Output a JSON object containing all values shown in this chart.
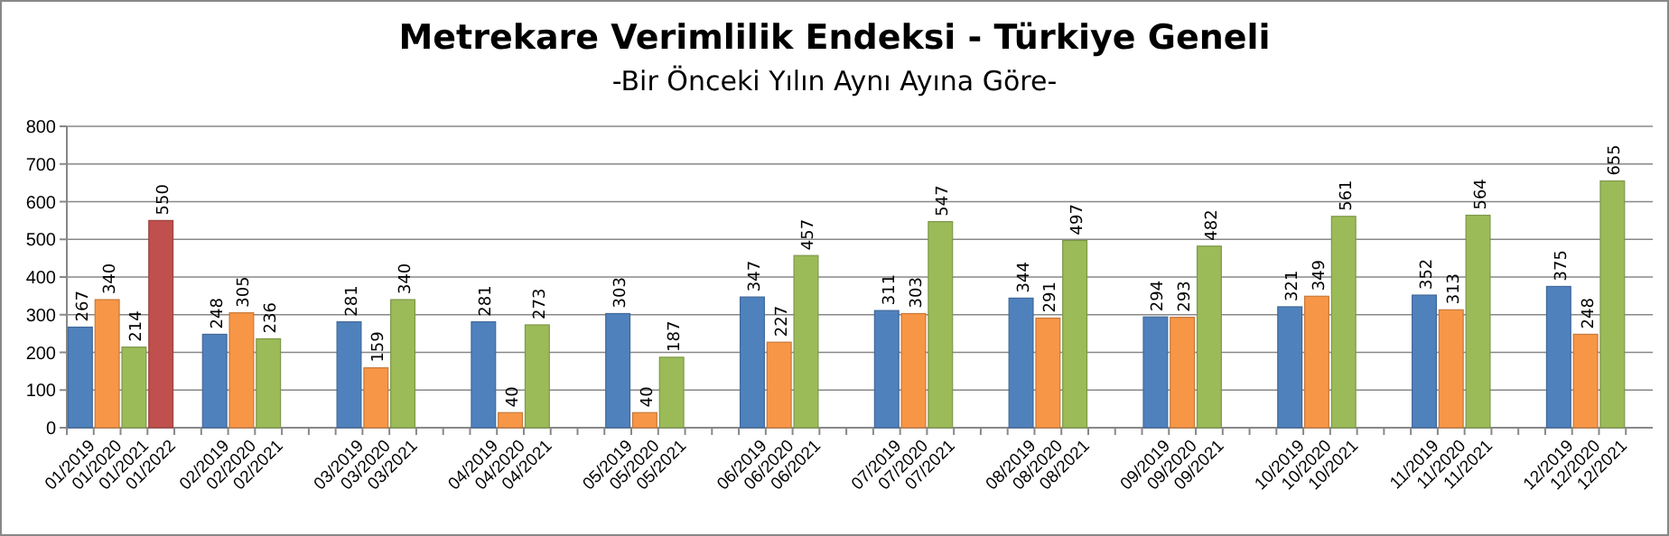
{
  "chart_data": {
    "type": "bar",
    "title": "Metrekare Verimlilik Endeksi - Türkiye Geneli",
    "subtitle": "-Bir Önceki Yılın Aynı Ayına Göre-",
    "categories": [
      "01/2019",
      "01/2020",
      "01/2021",
      "01/2022",
      null,
      "02/2019",
      "02/2020",
      "02/2021",
      null,
      null,
      "03/2019",
      "03/2020",
      "03/2021",
      null,
      null,
      "04/2019",
      "04/2020",
      "04/2021",
      null,
      null,
      "05/2019",
      "05/2020",
      "05/2021",
      null,
      null,
      "06/2019",
      "06/2020",
      "06/2021",
      null,
      null,
      "07/2019",
      "07/2020",
      "07/2021",
      null,
      null,
      "08/2019",
      "08/2020",
      "08/2021",
      null,
      null,
      "09/2019",
      "09/2020",
      "09/2021",
      null,
      null,
      "10/2019",
      "10/2020",
      "10/2021",
      null,
      null,
      "11/2019",
      "11/2020",
      "11/2021",
      null,
      null,
      "12/2019",
      "12/2020",
      "12/2021",
      null
    ],
    "values": [
      267,
      340,
      214,
      550,
      null,
      248,
      305,
      236,
      null,
      null,
      281,
      159,
      340,
      null,
      null,
      281,
      40,
      273,
      null,
      null,
      303,
      40,
      187,
      null,
      null,
      347,
      227,
      457,
      null,
      null,
      311,
      303,
      547,
      null,
      null,
      344,
      291,
      497,
      null,
      null,
      294,
      293,
      482,
      null,
      null,
      321,
      349,
      561,
      null,
      null,
      352,
      313,
      564,
      null,
      null,
      375,
      248,
      655,
      null
    ],
    "colors": [
      "#4f81bd",
      "#f79646",
      "#9bbb59",
      "#c0504d",
      null,
      "#4f81bd",
      "#f79646",
      "#9bbb59",
      null,
      null,
      "#4f81bd",
      "#f79646",
      "#9bbb59",
      null,
      null,
      "#4f81bd",
      "#f79646",
      "#9bbb59",
      null,
      null,
      "#4f81bd",
      "#f79646",
      "#9bbb59",
      null,
      null,
      "#4f81bd",
      "#f79646",
      "#9bbb59",
      null,
      null,
      "#4f81bd",
      "#f79646",
      "#9bbb59",
      null,
      null,
      "#4f81bd",
      "#f79646",
      "#9bbb59",
      null,
      null,
      "#4f81bd",
      "#f79646",
      "#9bbb59",
      null,
      null,
      "#4f81bd",
      "#f79646",
      "#9bbb59",
      null,
      null,
      "#4f81bd",
      "#f79646",
      "#9bbb59",
      null,
      null,
      "#4f81bd",
      "#f79646",
      "#9bbb59",
      null
    ],
    "ylim": [
      0,
      800
    ],
    "yticks": [
      0,
      100,
      200,
      300,
      400,
      500,
      600,
      700,
      800
    ],
    "grid": "y",
    "data_labels": true
  }
}
